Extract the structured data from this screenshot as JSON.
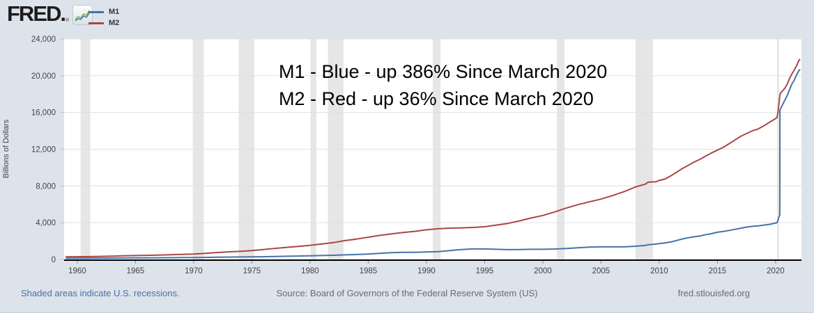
{
  "header": {
    "logo_text": "FRED",
    "logo_suffix": ".",
    "registered_mark": "®",
    "logo_icon": "fred-sparkline-icon"
  },
  "legend": [
    {
      "label": "M1",
      "color": "#4572a7"
    },
    {
      "label": "M2",
      "color": "#aa4643"
    }
  ],
  "annotation": {
    "line1": "M1 - Blue - up 386% Since March 2020",
    "line2": "M2 - Red - up 36% Since March 2020"
  },
  "footer": {
    "recessions_note": "Shaded areas indicate U.S. recessions.",
    "source": "Source: Board of Governors of the Federal Reserve System (US)",
    "site": "fred.stlouisfed.org"
  },
  "colors": {
    "background": "#dde3eb",
    "plot_background": "#ffffff",
    "gridline": "#e0e0e0",
    "recession_band": "#e6e6e6",
    "axis_line": "#000000",
    "tick_text": "#444444",
    "m1_blue": "#4572a7",
    "m2_red": "#aa4643",
    "link_blue": "#4a6fa5",
    "footer_gray": "#6b6b6b"
  },
  "chart_data": {
    "type": "line",
    "title": "",
    "xlabel": "",
    "ylabel": "Billions of Dollars",
    "ylim": [
      0,
      24000
    ],
    "xlim": [
      1958.87,
      2022.22
    ],
    "yticks": [
      0,
      4000,
      8000,
      12000,
      16000,
      20000,
      24000
    ],
    "ytick_labels": [
      "0",
      "4,000",
      "8,000",
      "12,000",
      "16,000",
      "20,000",
      "24,000"
    ],
    "xticks": [
      1960,
      1965,
      1970,
      1975,
      1980,
      1985,
      1990,
      1995,
      2000,
      2005,
      2010,
      2015,
      2020
    ],
    "xtick_labels": [
      "1960",
      "1965",
      "1970",
      "1975",
      "1980",
      "1985",
      "1990",
      "1995",
      "2000",
      "2005",
      "2010",
      "2015",
      "2020"
    ],
    "grid": "horizontal",
    "legend_position": "top-left",
    "recession_bands": [
      [
        1960.29,
        1961.12
      ],
      [
        1969.92,
        1970.87
      ],
      [
        1973.87,
        1975.21
      ],
      [
        1980.04,
        1980.54
      ],
      [
        1981.54,
        1982.87
      ],
      [
        1990.54,
        1991.21
      ],
      [
        2001.21,
        2001.87
      ],
      [
        2007.96,
        2009.46
      ],
      [
        2020.12,
        2020.29
      ]
    ],
    "series": [
      {
        "name": "M1",
        "color": "#4572a7",
        "points": [
          [
            1959.0,
            139
          ],
          [
            1960,
            140
          ],
          [
            1961,
            142
          ],
          [
            1962,
            146
          ],
          [
            1963,
            151
          ],
          [
            1964,
            157
          ],
          [
            1965,
            164
          ],
          [
            1966,
            171
          ],
          [
            1967,
            178
          ],
          [
            1968,
            190
          ],
          [
            1969,
            201
          ],
          [
            1970,
            209
          ],
          [
            1971,
            223
          ],
          [
            1972,
            239
          ],
          [
            1973,
            257
          ],
          [
            1974,
            269
          ],
          [
            1975,
            281
          ],
          [
            1976,
            297
          ],
          [
            1977,
            320
          ],
          [
            1978,
            346
          ],
          [
            1979,
            372
          ],
          [
            1980,
            395
          ],
          [
            1981,
            425
          ],
          [
            1982,
            453
          ],
          [
            1983,
            503
          ],
          [
            1984,
            538
          ],
          [
            1985,
            587
          ],
          [
            1986,
            666
          ],
          [
            1987,
            743
          ],
          [
            1988,
            774
          ],
          [
            1989,
            782
          ],
          [
            1990,
            810
          ],
          [
            1991,
            859
          ],
          [
            1992,
            965
          ],
          [
            1993,
            1078
          ],
          [
            1994,
            1145
          ],
          [
            1995,
            1143
          ],
          [
            1996,
            1106
          ],
          [
            1997,
            1070
          ],
          [
            1998,
            1080
          ],
          [
            1999,
            1102
          ],
          [
            2000,
            1104
          ],
          [
            2001,
            1136
          ],
          [
            2002,
            1196
          ],
          [
            2003,
            1274
          ],
          [
            2004,
            1344
          ],
          [
            2005,
            1372
          ],
          [
            2006,
            1374
          ],
          [
            2007,
            1373
          ],
          [
            2008,
            1435
          ],
          [
            2008.8,
            1525
          ],
          [
            2009,
            1595
          ],
          [
            2009.5,
            1650
          ],
          [
            2010,
            1722
          ],
          [
            2010.5,
            1800
          ],
          [
            2011,
            1900
          ],
          [
            2011.6,
            2100
          ],
          [
            2012,
            2230
          ],
          [
            2012.5,
            2360
          ],
          [
            2013,
            2470
          ],
          [
            2013.5,
            2550
          ],
          [
            2014,
            2700
          ],
          [
            2014.5,
            2810
          ],
          [
            2015,
            2960
          ],
          [
            2015.5,
            3040
          ],
          [
            2016,
            3160
          ],
          [
            2016.5,
            3280
          ],
          [
            2017,
            3400
          ],
          [
            2017.5,
            3520
          ],
          [
            2018,
            3600
          ],
          [
            2018.5,
            3660
          ],
          [
            2019,
            3740
          ],
          [
            2019.5,
            3820
          ],
          [
            2020.0,
            3970
          ],
          [
            2020.12,
            4003
          ],
          [
            2020.21,
            4261
          ],
          [
            2020.3,
            4700
          ],
          [
            2020.36,
            4790
          ],
          [
            2020.37,
            16242
          ],
          [
            2020.5,
            16600
          ],
          [
            2020.7,
            17100
          ],
          [
            2020.9,
            17600
          ],
          [
            2021.0,
            17850
          ],
          [
            2021.2,
            18500
          ],
          [
            2021.4,
            19100
          ],
          [
            2021.6,
            19500
          ],
          [
            2021.8,
            20100
          ],
          [
            2022.0,
            20550
          ],
          [
            2022.1,
            20700
          ]
        ]
      },
      {
        "name": "M2",
        "color": "#aa4643",
        "points": [
          [
            1959.0,
            287
          ],
          [
            1960,
            298
          ],
          [
            1961,
            312
          ],
          [
            1962,
            335
          ],
          [
            1963,
            362
          ],
          [
            1964,
            393
          ],
          [
            1965,
            425
          ],
          [
            1966,
            448
          ],
          [
            1967,
            480
          ],
          [
            1968,
            515
          ],
          [
            1969,
            550
          ],
          [
            1970,
            590
          ],
          [
            1971,
            668
          ],
          [
            1972,
            750
          ],
          [
            1973,
            822
          ],
          [
            1974,
            880
          ],
          [
            1975,
            963
          ],
          [
            1976,
            1086
          ],
          [
            1977,
            1203
          ],
          [
            1978,
            1320
          ],
          [
            1979,
            1425
          ],
          [
            1980,
            1540
          ],
          [
            1981,
            1679
          ],
          [
            1982,
            1831
          ],
          [
            1983,
            2055
          ],
          [
            1984,
            2219
          ],
          [
            1985,
            2419
          ],
          [
            1986,
            2616
          ],
          [
            1987,
            2786
          ],
          [
            1988,
            2933
          ],
          [
            1989,
            3056
          ],
          [
            1990,
            3223
          ],
          [
            1991,
            3342
          ],
          [
            1992,
            3404
          ],
          [
            1993,
            3441
          ],
          [
            1994,
            3479
          ],
          [
            1995,
            3558
          ],
          [
            1996,
            3741
          ],
          [
            1997,
            3921
          ],
          [
            1998,
            4204
          ],
          [
            1999,
            4511
          ],
          [
            2000,
            4786
          ],
          [
            2001,
            5165
          ],
          [
            2002,
            5584
          ],
          [
            2003,
            5957
          ],
          [
            2004,
            6270
          ],
          [
            2005,
            6571
          ],
          [
            2006,
            6956
          ],
          [
            2007,
            7388
          ],
          [
            2008,
            7910
          ],
          [
            2008.8,
            8190
          ],
          [
            2009,
            8390
          ],
          [
            2009.3,
            8440
          ],
          [
            2009.7,
            8440
          ],
          [
            2010,
            8600
          ],
          [
            2010.5,
            8750
          ],
          [
            2011,
            9100
          ],
          [
            2011.5,
            9500
          ],
          [
            2012,
            9900
          ],
          [
            2012.5,
            10250
          ],
          [
            2013,
            10600
          ],
          [
            2013.5,
            10900
          ],
          [
            2014,
            11250
          ],
          [
            2014.5,
            11600
          ],
          [
            2015,
            11900
          ],
          [
            2015.5,
            12200
          ],
          [
            2016,
            12600
          ],
          [
            2016.5,
            13000
          ],
          [
            2017,
            13400
          ],
          [
            2017.5,
            13700
          ],
          [
            2018,
            14000
          ],
          [
            2018.5,
            14200
          ],
          [
            2019,
            14550
          ],
          [
            2019.5,
            14950
          ],
          [
            2020.0,
            15330
          ],
          [
            2020.12,
            15450
          ],
          [
            2020.21,
            16080
          ],
          [
            2020.29,
            17020
          ],
          [
            2020.37,
            17900
          ],
          [
            2020.45,
            18160
          ],
          [
            2020.6,
            18350
          ],
          [
            2020.8,
            18650
          ],
          [
            2021.0,
            19100
          ],
          [
            2021.2,
            19700
          ],
          [
            2021.4,
            20200
          ],
          [
            2021.6,
            20600
          ],
          [
            2021.8,
            21100
          ],
          [
            2022.0,
            21640
          ],
          [
            2022.1,
            21810
          ]
        ]
      }
    ]
  }
}
